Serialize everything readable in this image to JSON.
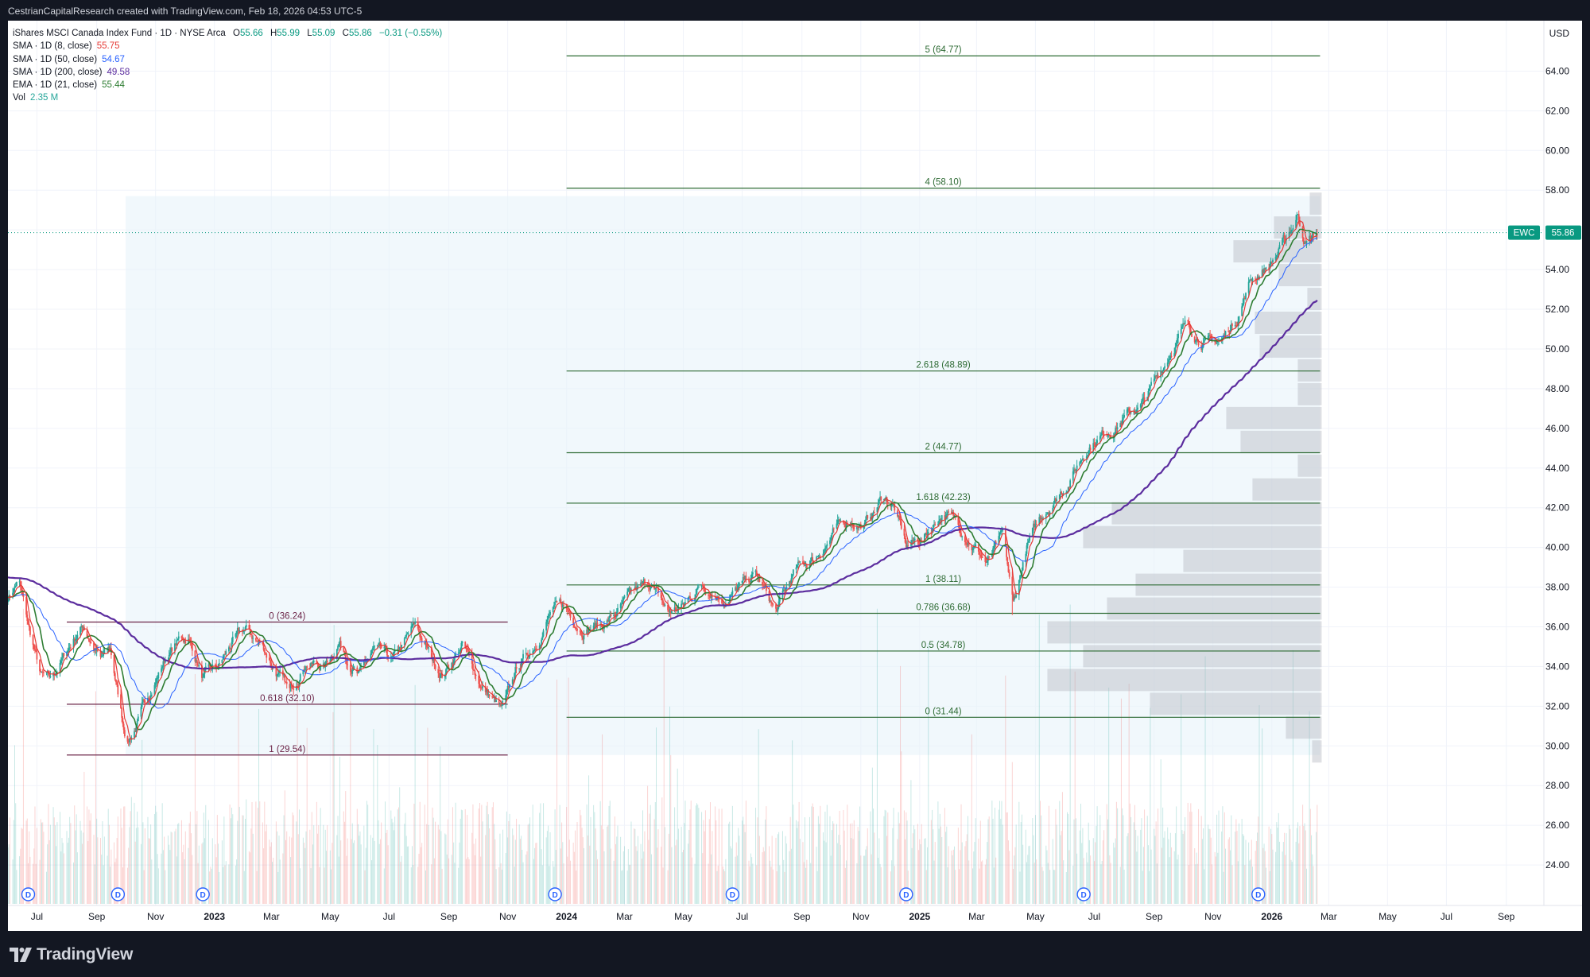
{
  "header": {
    "attribution": "CestrianCapitalResearch created with TradingView.com, Feb 18, 2026 04:53 UTC-5"
  },
  "legend": {
    "symbol_line": "iShares MSCI Canada Index Fund · 1D · NYSE Arca",
    "ohlc": {
      "o_label": "O",
      "o": "55.66",
      "h_label": "H",
      "h": "55.99",
      "l_label": "L",
      "l": "55.09",
      "c_label": "C",
      "c": "55.86",
      "change": "−0.31 (−0.55%)"
    },
    "indicators": [
      {
        "label": "SMA · 1D (8, close)",
        "value": "55.75",
        "color": "#e53935"
      },
      {
        "label": "SMA · 1D (50, close)",
        "value": "54.67",
        "color": "#2962ff"
      },
      {
        "label": "SMA · 1D (200, close)",
        "value": "49.58",
        "color": "#5b2c9e"
      },
      {
        "label": "EMA · 1D (21, close)",
        "value": "55.44",
        "color": "#2e7d32"
      },
      {
        "label": "Vol",
        "value": "2.35 M",
        "color": "#26a69a"
      }
    ]
  },
  "footer": {
    "brand": "TradingView"
  },
  "colors": {
    "up": "#26a69a",
    "down": "#ef5350",
    "fib_green": "#2e6b34",
    "fib_purple": "#6b2447",
    "sma8": "#e53935",
    "sma50": "#2962ff",
    "sma200": "#5b2c9e",
    "ema21": "#2e7d32",
    "price_label": "#089981"
  },
  "chart_data": {
    "type": "candlestick",
    "symbol": "EWC",
    "currency": "USD",
    "last_price": 55.86,
    "last_price_label": "55.86",
    "y_range": [
      22.0,
      65.5
    ],
    "y_ticks": [
      24,
      26,
      28,
      30,
      32,
      34,
      36,
      38,
      40,
      42,
      44,
      46,
      48,
      50,
      52,
      54,
      56,
      58,
      60,
      62,
      64
    ],
    "x_range": [
      "2022-06-01",
      "2026-10-10"
    ],
    "x_ticks": [
      {
        "date": "2022-07-01",
        "label": "Jul",
        "bold": false
      },
      {
        "date": "2022-09-01",
        "label": "Sep",
        "bold": false
      },
      {
        "date": "2022-11-01",
        "label": "Nov",
        "bold": false
      },
      {
        "date": "2023-01-01",
        "label": "2023",
        "bold": true
      },
      {
        "date": "2023-03-01",
        "label": "Mar",
        "bold": false
      },
      {
        "date": "2023-05-01",
        "label": "May",
        "bold": false
      },
      {
        "date": "2023-07-01",
        "label": "Jul",
        "bold": false
      },
      {
        "date": "2023-09-01",
        "label": "Sep",
        "bold": false
      },
      {
        "date": "2023-11-01",
        "label": "Nov",
        "bold": false
      },
      {
        "date": "2024-01-01",
        "label": "2024",
        "bold": true
      },
      {
        "date": "2024-03-01",
        "label": "Mar",
        "bold": false
      },
      {
        "date": "2024-05-01",
        "label": "May",
        "bold": false
      },
      {
        "date": "2024-07-01",
        "label": "Jul",
        "bold": false
      },
      {
        "date": "2024-09-01",
        "label": "Sep",
        "bold": false
      },
      {
        "date": "2024-11-01",
        "label": "Nov",
        "bold": false
      },
      {
        "date": "2025-01-01",
        "label": "2025",
        "bold": true
      },
      {
        "date": "2025-03-01",
        "label": "Mar",
        "bold": false
      },
      {
        "date": "2025-05-01",
        "label": "May",
        "bold": false
      },
      {
        "date": "2025-07-01",
        "label": "Jul",
        "bold": false
      },
      {
        "date": "2025-09-01",
        "label": "Sep",
        "bold": false
      },
      {
        "date": "2025-11-01",
        "label": "Nov",
        "bold": false
      },
      {
        "date": "2026-01-01",
        "label": "2026",
        "bold": true
      },
      {
        "date": "2026-03-01",
        "label": "Mar",
        "bold": false
      },
      {
        "date": "2026-05-01",
        "label": "May",
        "bold": false
      },
      {
        "date": "2026-07-01",
        "label": "Jul",
        "bold": false
      },
      {
        "date": "2026-09-01",
        "label": "Sep",
        "bold": false
      }
    ],
    "price_path": [
      [
        "2022-06-01",
        37.5
      ],
      [
        "2022-06-12",
        38.4
      ],
      [
        "2022-06-22",
        36.0
      ],
      [
        "2022-07-05",
        33.5
      ],
      [
        "2022-07-15",
        33.2
      ],
      [
        "2022-07-28",
        34.4
      ],
      [
        "2022-08-12",
        35.7
      ],
      [
        "2022-08-18",
        36.1
      ],
      [
        "2022-09-05",
        34.3
      ],
      [
        "2022-09-15",
        34.8
      ],
      [
        "2022-09-28",
        31.2
      ],
      [
        "2022-10-03",
        30.3
      ],
      [
        "2022-10-14",
        31.2
      ],
      [
        "2022-10-25",
        32.6
      ],
      [
        "2022-11-10",
        34.3
      ],
      [
        "2022-11-25",
        35.3
      ],
      [
        "2022-12-05",
        35.5
      ],
      [
        "2022-12-20",
        33.4
      ],
      [
        "2023-01-05",
        33.9
      ],
      [
        "2023-01-20",
        35.2
      ],
      [
        "2023-02-02",
        35.8
      ],
      [
        "2023-02-20",
        35.0
      ],
      [
        "2023-03-13",
        33.2
      ],
      [
        "2023-03-20",
        32.6
      ],
      [
        "2023-04-05",
        34.3
      ],
      [
        "2023-04-25",
        34.0
      ],
      [
        "2023-05-10",
        35.3
      ],
      [
        "2023-05-31",
        33.5
      ],
      [
        "2023-06-15",
        34.8
      ],
      [
        "2023-07-05",
        34.2
      ],
      [
        "2023-07-28",
        36.0
      ],
      [
        "2023-08-15",
        34.3
      ],
      [
        "2023-08-25",
        33.6
      ],
      [
        "2023-09-15",
        35.1
      ],
      [
        "2023-10-05",
        33.0
      ],
      [
        "2023-10-27",
        31.7
      ],
      [
        "2023-11-10",
        33.8
      ],
      [
        "2023-11-30",
        35.2
      ],
      [
        "2023-12-15",
        36.7
      ],
      [
        "2023-12-28",
        37.0
      ],
      [
        "2024-01-17",
        36.0
      ],
      [
        "2024-02-05",
        36.1
      ],
      [
        "2024-02-20",
        36.6
      ],
      [
        "2024-03-10",
        37.6
      ],
      [
        "2024-03-28",
        38.2
      ],
      [
        "2024-04-15",
        36.7
      ],
      [
        "2024-05-01",
        37.0
      ],
      [
        "2024-05-20",
        38.2
      ],
      [
        "2024-06-15",
        37.4
      ],
      [
        "2024-07-15",
        38.6
      ],
      [
        "2024-08-05",
        36.7
      ],
      [
        "2024-08-25",
        38.8
      ],
      [
        "2024-09-15",
        39.5
      ],
      [
        "2024-10-05",
        40.8
      ],
      [
        "2024-10-20",
        41.4
      ],
      [
        "2024-11-05",
        41.1
      ],
      [
        "2024-11-25",
        42.6
      ],
      [
        "2024-12-05",
        42.1
      ],
      [
        "2024-12-18",
        40.0
      ],
      [
        "2025-01-05",
        40.5
      ],
      [
        "2025-01-25",
        41.8
      ],
      [
        "2025-02-10",
        41.2
      ],
      [
        "2025-02-25",
        40.2
      ],
      [
        "2025-03-12",
        39.2
      ],
      [
        "2025-03-28",
        40.5
      ],
      [
        "2025-04-08",
        37.0
      ],
      [
        "2025-04-22",
        40.0
      ],
      [
        "2025-05-10",
        41.8
      ],
      [
        "2025-06-05",
        43.4
      ],
      [
        "2025-06-25",
        45.2
      ],
      [
        "2025-07-15",
        45.9
      ],
      [
        "2025-08-05",
        46.7
      ],
      [
        "2025-08-20",
        47.2
      ],
      [
        "2025-09-05",
        48.6
      ],
      [
        "2025-09-25",
        50.6
      ],
      [
        "2025-10-05",
        51.2
      ],
      [
        "2025-10-25",
        50.3
      ],
      [
        "2025-11-10",
        50.4
      ],
      [
        "2025-11-25",
        51.5
      ],
      [
        "2025-12-10",
        53.5
      ],
      [
        "2025-12-30",
        54.3
      ],
      [
        "2026-01-15",
        55.4
      ],
      [
        "2026-01-28",
        56.8
      ],
      [
        "2026-02-05",
        55.4
      ],
      [
        "2026-02-17",
        55.86
      ]
    ],
    "moving_averages": [
      {
        "name": "SMA 8",
        "color": "#e53935",
        "lag": 6,
        "width": 1.2
      },
      {
        "name": "EMA 21",
        "color": "#2e7d32",
        "lag": 15,
        "width": 1.6
      },
      {
        "name": "SMA 50",
        "color": "#2962ff",
        "lag": 34,
        "width": 1.0
      },
      {
        "name": "SMA 200",
        "color": "#5b2c9e",
        "lag": 120,
        "width": 2.2
      }
    ],
    "volume_axis_max": 40,
    "dividend_marker_label": "D",
    "dividends": [
      "2022-06-22",
      "2022-09-23",
      "2022-12-20",
      "2023-12-20",
      "2024-06-21",
      "2024-12-18",
      "2025-06-20",
      "2025-12-18"
    ],
    "fib_green": {
      "x0": "2024-01-01",
      "x1": "2026-02-20",
      "levels": [
        {
          "price": 64.77,
          "label": "5 (64.77)"
        },
        {
          "price": 58.1,
          "label": "4 (58.10)"
        },
        {
          "price": 48.89,
          "label": "2.618 (48.89)"
        },
        {
          "price": 44.77,
          "label": "2 (44.77)"
        },
        {
          "price": 42.23,
          "label": "1.618 (42.23)"
        },
        {
          "price": 38.11,
          "label": "1 (38.11)"
        },
        {
          "price": 36.68,
          "label": "0.786 (36.68)"
        },
        {
          "price": 34.78,
          "label": "0.5 (34.78)"
        },
        {
          "price": 31.44,
          "label": "0 (31.44)"
        }
      ]
    },
    "fib_purple": {
      "x0": "2022-08-01",
      "x1": "2023-11-01",
      "levels": [
        {
          "price": 36.24,
          "label": "0 (36.24)"
        },
        {
          "price": 32.1,
          "label": "0.618 (32.10)"
        },
        {
          "price": 29.54,
          "label": "1 (29.54)"
        }
      ]
    },
    "range_box": {
      "x0": "2022-10-01",
      "x1": "2026-02-20",
      "y0": 29.54,
      "y1": 57.7
    },
    "volume_profile": [
      {
        "price": 29.7,
        "weight": 0.04
      },
      {
        "price": 30.9,
        "weight": 0.15
      },
      {
        "price": 32.1,
        "weight": 0.72
      },
      {
        "price": 33.3,
        "weight": 1.15
      },
      {
        "price": 34.5,
        "weight": 1.0
      },
      {
        "price": 35.7,
        "weight": 1.15
      },
      {
        "price": 36.9,
        "weight": 0.9
      },
      {
        "price": 38.1,
        "weight": 0.78
      },
      {
        "price": 39.3,
        "weight": 0.58
      },
      {
        "price": 40.5,
        "weight": 1.0
      },
      {
        "price": 41.7,
        "weight": 0.88
      },
      {
        "price": 42.9,
        "weight": 0.29
      },
      {
        "price": 44.1,
        "weight": 0.1
      },
      {
        "price": 45.3,
        "weight": 0.34
      },
      {
        "price": 46.5,
        "weight": 0.4
      },
      {
        "price": 47.7,
        "weight": 0.1
      },
      {
        "price": 48.9,
        "weight": 0.1
      },
      {
        "price": 50.1,
        "weight": 0.26
      },
      {
        "price": 51.3,
        "weight": 0.28
      },
      {
        "price": 52.5,
        "weight": 0.06
      },
      {
        "price": 53.7,
        "weight": 0.18
      },
      {
        "price": 54.9,
        "weight": 0.37
      },
      {
        "price": 56.1,
        "weight": 0.2
      },
      {
        "price": 57.3,
        "weight": 0.05
      }
    ]
  }
}
